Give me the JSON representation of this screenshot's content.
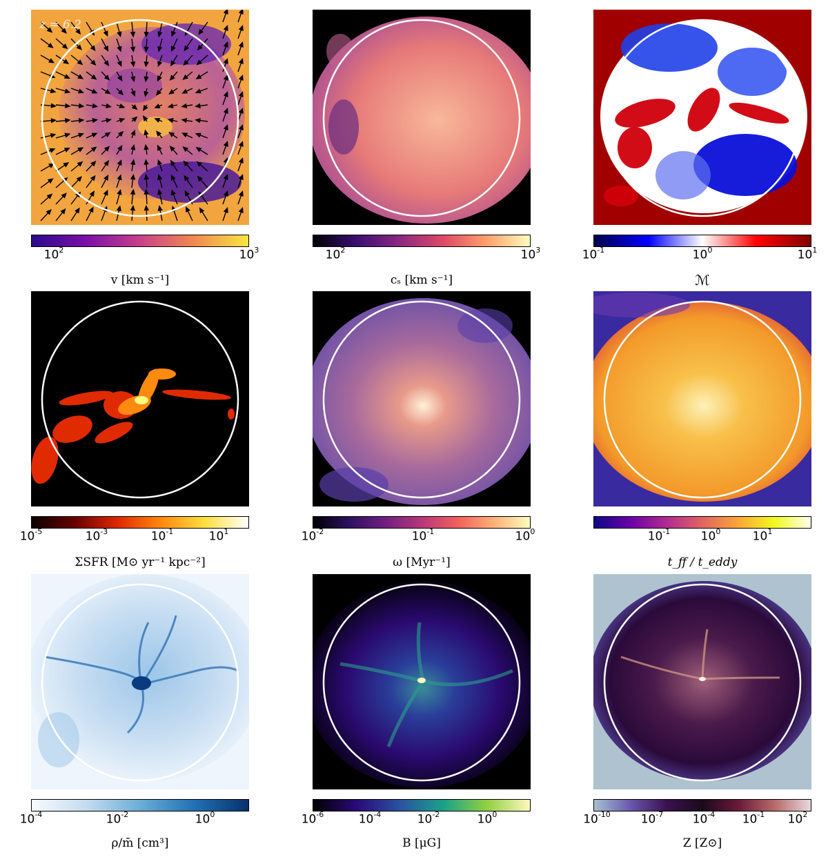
{
  "figure": {
    "redshift_label": "z = 6.2",
    "panels": [
      {
        "id": "velocity",
        "quantity_label": "v [km s⁻¹]",
        "colormap": "plasma",
        "ticks": [
          {
            "base": "10",
            "exp": "2"
          },
          {
            "base": "10",
            "exp": "3"
          }
        ],
        "colors": {
          "bg": "#f3a742",
          "low": "#5a1ea0",
          "mid": "#c84d8c",
          "high": "#f8e14a"
        }
      },
      {
        "id": "sound-speed",
        "quantity_label": "cₛ [km s⁻¹]",
        "colormap": "magma",
        "ticks": [
          {
            "base": "10",
            "exp": "2"
          },
          {
            "base": "10",
            "exp": "3"
          }
        ],
        "colors": {
          "bg": "#000000",
          "low": "#5a2a7a",
          "mid": "#e56a6a",
          "high": "#fce9b6"
        }
      },
      {
        "id": "mach-number",
        "quantity_label": "ℳ",
        "colormap": "seismic",
        "ticks": [
          {
            "base": "10",
            "exp": "-1"
          },
          {
            "base": "10",
            "exp": "0"
          },
          {
            "base": "10",
            "exp": "1"
          }
        ],
        "colors": {
          "bg": "#a00000",
          "low": "#0a1ae0",
          "mid": "#ffffff",
          "high": "#c8000a"
        }
      },
      {
        "id": "sfr-surface-density",
        "quantity_label": "ΣSFR [M⊙ yr⁻¹ kpc⁻²]",
        "colormap": "hot",
        "ticks": [
          {
            "base": "10",
            "exp": "-5"
          },
          {
            "base": "10",
            "exp": "-3"
          },
          {
            "base": "10",
            "exp": "-1"
          },
          {
            "base": "10",
            "exp": "1"
          }
        ],
        "colors": {
          "bg": "#000000",
          "low": "#c01a00",
          "mid": "#ff8a10",
          "high": "#ffffd0"
        }
      },
      {
        "id": "vorticity",
        "quantity_label": "ω [Myr⁻¹]",
        "colormap": "magma",
        "ticks": [
          {
            "base": "10",
            "exp": "-2"
          },
          {
            "base": "10",
            "exp": "-1"
          },
          {
            "base": "10",
            "exp": "0"
          }
        ],
        "colors": {
          "bg": "#000000",
          "low": "#5a3f9a",
          "mid": "#d07a8a",
          "high": "#fff0d0"
        }
      },
      {
        "id": "time-ratio",
        "quantity_label": "t_ff / t_eddy",
        "colormap": "plasma",
        "ticks": [
          {
            "base": "10",
            "exp": "-1"
          },
          {
            "base": "10",
            "exp": "0"
          },
          {
            "base": "10",
            "exp": "1"
          }
        ],
        "colors": {
          "bg": "#3a2aa0",
          "low": "#e6532f",
          "mid": "#f5a82a",
          "high": "#fdf3b0"
        }
      },
      {
        "id": "overdensity",
        "quantity_label": "ρ/m̄ [cm³]",
        "colormap": "Blues",
        "ticks": [
          {
            "base": "10",
            "exp": "-4"
          },
          {
            "base": "10",
            "exp": "-2"
          },
          {
            "base": "10",
            "exp": "0"
          }
        ],
        "colors": {
          "bg": "#eef5fc",
          "low": "#b5d4ee",
          "mid": "#5e9fd2",
          "high": "#083f86"
        }
      },
      {
        "id": "magnetic-field",
        "quantity_label": "B [μG]",
        "colormap": "gnuplot2",
        "ticks": [
          {
            "base": "10",
            "exp": "-6"
          },
          {
            "base": "10",
            "exp": "-4"
          },
          {
            "base": "10",
            "exp": "-2"
          },
          {
            "base": "10",
            "exp": "0"
          }
        ],
        "colors": {
          "bg": "#000000",
          "low": "#2a0a6a",
          "mid": "#2a7a8a",
          "high": "#f0ff80"
        }
      },
      {
        "id": "metallicity",
        "quantity_label": "Z [Z⊙]",
        "colormap": "twilight",
        "ticks": [
          {
            "base": "10",
            "exp": "-10"
          },
          {
            "base": "10",
            "exp": "-7"
          },
          {
            "base": "10",
            "exp": "-4"
          },
          {
            "base": "10",
            "exp": "-1"
          },
          {
            "base": "10",
            "exp": "2"
          }
        ],
        "colors": {
          "bg": "#aec3cf",
          "low": "#4a2a8a",
          "mid": "#2a0a3a",
          "high": "#d29a82"
        }
      }
    ]
  }
}
